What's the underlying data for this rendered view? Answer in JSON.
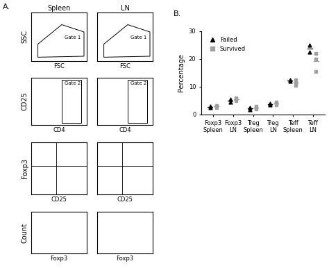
{
  "panel_labels": [
    "A.",
    "B."
  ],
  "flow_plots": {
    "columns": [
      "Spleen",
      "LN"
    ],
    "tick_labels": false,
    "rows": [
      {
        "type": "scatter",
        "ylabel": "SSC",
        "xlabel": "FSC",
        "gate": "Gate 1"
      },
      {
        "type": "scatter",
        "ylabel": "CD25",
        "xlabel": "CD4",
        "gate": "Gate 2"
      },
      {
        "type": "quadrant",
        "ylabel": "Foxp3",
        "xlabel": "CD25"
      },
      {
        "type": "histogram",
        "ylabel": "Count",
        "xlabel": "Foxp3"
      }
    ]
  },
  "chart_data": {
    "type": "scatter",
    "ylabel": "Percentage",
    "categories": [
      "Foxp3\nSpleen",
      "Foxp3\nLN",
      "Treg\nSpleen",
      "Treg\nLN",
      "Teff\nSpleen",
      "Teff\nLN"
    ],
    "ylim": [
      0,
      30
    ],
    "yticks": [
      0,
      10,
      20,
      30
    ],
    "legend": "upper left",
    "series": [
      {
        "name": "Failed",
        "color": "#000000",
        "marker": "triangle",
        "values": [
          [
            2.5,
            3.0
          ],
          [
            4.5,
            5.5
          ],
          [
            1.8,
            2.5
          ],
          [
            3.5,
            4.0
          ],
          [
            12.0,
            12.5
          ],
          [
            22.5,
            25.0
          ]
        ],
        "means": [
          2.8,
          5.0,
          2.2,
          3.8,
          12.2,
          23.8
        ]
      },
      {
        "name": "Survived",
        "color": "#a0a0a0",
        "marker": "square",
        "values": [
          [
            2.5,
            3.0,
            3.3
          ],
          [
            5.0,
            5.5,
            6.0
          ],
          [
            2.0,
            2.5,
            3.0
          ],
          [
            3.5,
            4.0,
            4.5
          ],
          [
            10.5,
            11.5,
            12.5
          ],
          [
            15.5,
            20.0,
            22.0
          ]
        ],
        "means": [
          2.9,
          5.5,
          2.5,
          4.0,
          11.5,
          19.2
        ]
      }
    ]
  }
}
